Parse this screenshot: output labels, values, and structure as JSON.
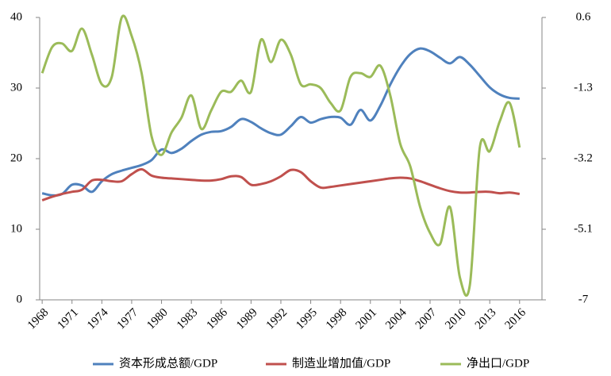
{
  "chart_data": {
    "type": "line",
    "x": [
      1968,
      1969,
      1970,
      1971,
      1972,
      1973,
      1974,
      1975,
      1976,
      1977,
      1978,
      1979,
      1980,
      1981,
      1982,
      1983,
      1984,
      1985,
      1986,
      1987,
      1988,
      1989,
      1990,
      1991,
      1992,
      1993,
      1994,
      1995,
      1996,
      1997,
      1998,
      1999,
      2000,
      2001,
      2002,
      2003,
      2004,
      2005,
      2006,
      2007,
      2008,
      2009,
      2010,
      2011,
      2012,
      2013,
      2014,
      2015,
      2016
    ],
    "xlim": [
      1967.75,
      2018.25
    ],
    "xticks": [
      1968,
      1971,
      1974,
      1977,
      1980,
      1983,
      1986,
      1989,
      1992,
      1995,
      1998,
      2001,
      2004,
      2007,
      2010,
      2013,
      2016
    ],
    "ylim": [
      0,
      40
    ],
    "yticks": [
      0,
      10,
      20,
      30,
      40
    ],
    "y2lim": [
      -7,
      0.6
    ],
    "y2ticks": [
      -7,
      -5.1,
      -3.2,
      -1.3,
      0.6
    ],
    "series": [
      {
        "name": "资本形成总额/GDP",
        "color": "#4f81bd",
        "values": [
          15.1,
          14.8,
          15.0,
          16.3,
          16.2,
          15.3,
          16.8,
          17.8,
          18.3,
          18.7,
          19.1,
          19.8,
          21.3,
          20.8,
          21.4,
          22.5,
          23.4,
          23.8,
          23.9,
          24.5,
          25.6,
          25.2,
          24.3,
          23.6,
          23.4,
          24.6,
          25.9,
          25.1,
          25.6,
          25.9,
          25.8,
          24.8,
          26.9,
          25.4,
          27.5,
          30.5,
          33.0,
          34.8,
          35.6,
          35.2,
          34.3,
          33.5,
          34.4,
          33.3,
          31.7,
          30.1,
          29.1,
          28.6,
          28.5
        ]
      },
      {
        "name": "制造业增加值/GDP",
        "color": "#c0504d",
        "values": [
          14.1,
          14.6,
          15.0,
          15.3,
          15.6,
          16.9,
          17.0,
          16.8,
          16.8,
          17.8,
          18.5,
          17.6,
          17.3,
          17.2,
          17.1,
          17.0,
          16.9,
          16.9,
          17.1,
          17.5,
          17.4,
          16.3,
          16.4,
          16.8,
          17.5,
          18.4,
          18.1,
          16.8,
          15.9,
          16.0,
          16.2,
          16.4,
          16.6,
          16.8,
          17.0,
          17.2,
          17.3,
          17.2,
          16.8,
          16.3,
          15.8,
          15.4,
          15.2,
          15.2,
          15.3,
          15.3,
          15.1,
          15.2,
          15.0
        ]
      },
      {
        "name": "净出口/GDP",
        "color": "#9bbb59",
        "axis": "y2",
        "values": [
          -0.9,
          -0.2,
          -0.1,
          -0.3,
          0.3,
          -0.4,
          -1.2,
          -1.0,
          0.6,
          0.1,
          -0.9,
          -2.6,
          -3.1,
          -2.5,
          -2.1,
          -1.5,
          -2.4,
          -1.9,
          -1.4,
          -1.4,
          -1.1,
          -1.4,
          0.0,
          -0.6,
          0.0,
          -0.4,
          -1.2,
          -1.2,
          -1.3,
          -1.7,
          -1.9,
          -1.0,
          -0.9,
          -1.0,
          -0.7,
          -1.5,
          -2.8,
          -3.4,
          -4.5,
          -5.2,
          -5.5,
          -4.5,
          -6.4,
          -6.6,
          -2.9,
          -3.0,
          -2.2,
          -1.7,
          -2.9
        ]
      }
    ],
    "legend": "bottom"
  }
}
